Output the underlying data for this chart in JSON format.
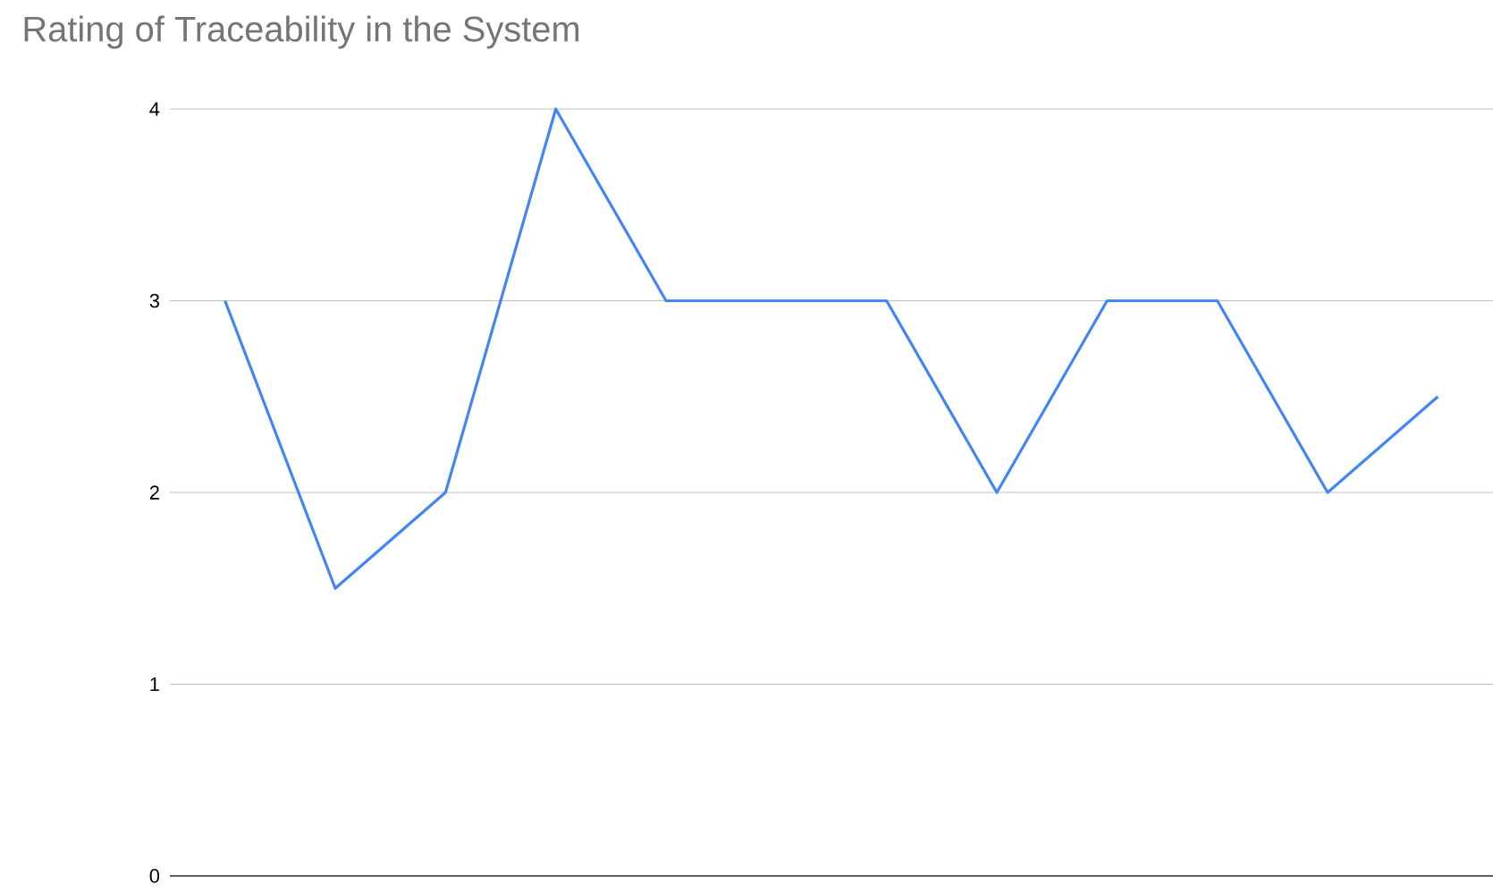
{
  "chart_data": {
    "type": "line",
    "title": "Rating of Traceability in the System",
    "categories": [
      null,
      null,
      null,
      null,
      null,
      null,
      null,
      null,
      null,
      null,
      null,
      null
    ],
    "series": [
      {
        "color": "#4285f4",
        "values": [
          3,
          1.5,
          2,
          4,
          3,
          3,
          3,
          2,
          3,
          3,
          2,
          2.5
        ]
      }
    ],
    "ylim": [
      0,
      4
    ],
    "yticks": [
      0,
      1,
      2,
      3,
      4
    ],
    "grid": "y",
    "marker": "none",
    "line_style": "solid"
  }
}
